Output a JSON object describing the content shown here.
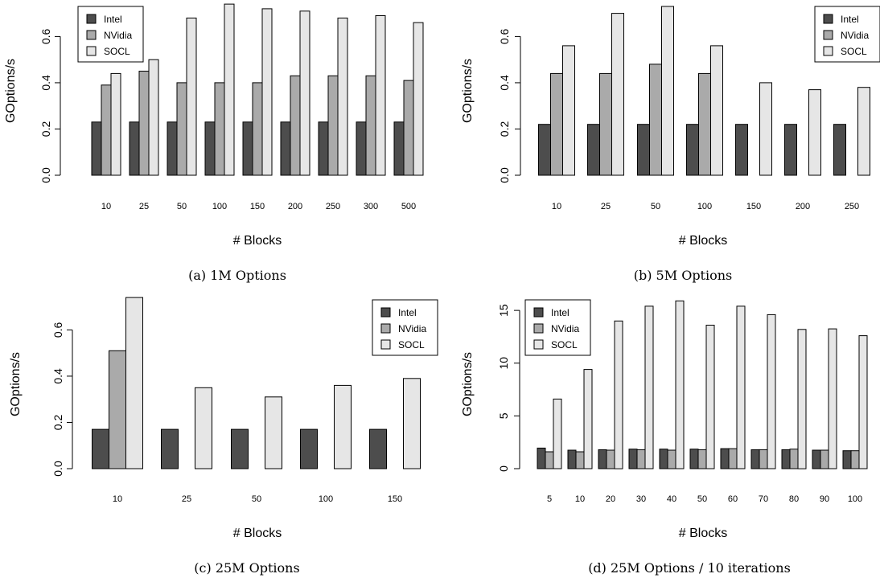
{
  "colors": {
    "Intel": "#4d4d4d",
    "NVidia": "#aaaaaa",
    "SOCL": "#e6e6e6",
    "stroke": "#000000"
  },
  "chart_data": [
    {
      "type": "bar",
      "caption": "(a) 1M Options",
      "xlabel": "# Blocks",
      "ylabel": "GOptions/s",
      "categories": [
        "10",
        "25",
        "50",
        "100",
        "150",
        "200",
        "250",
        "300",
        "500"
      ],
      "ylim": [
        0,
        0.73
      ],
      "yticks": [
        "0.0",
        "0.2",
        "0.4",
        "0.6"
      ],
      "legend_position": "top-left",
      "series": [
        {
          "name": "Intel",
          "values": [
            0.23,
            0.23,
            0.23,
            0.23,
            0.23,
            0.23,
            0.23,
            0.23,
            0.23
          ]
        },
        {
          "name": "NVidia",
          "values": [
            0.39,
            0.45,
            0.4,
            0.4,
            0.4,
            0.43,
            0.43,
            0.43,
            0.41
          ]
        },
        {
          "name": "SOCL",
          "values": [
            0.44,
            0.5,
            0.68,
            0.74,
            0.72,
            0.71,
            0.68,
            0.69,
            0.66
          ]
        }
      ]
    },
    {
      "type": "bar",
      "caption": "(b) 5M Options",
      "xlabel": "# Blocks",
      "ylabel": "GOptions/s",
      "categories": [
        "10",
        "25",
        "50",
        "100",
        "150",
        "200",
        "250"
      ],
      "ylim": [
        0,
        0.73
      ],
      "yticks": [
        "0.0",
        "0.2",
        "0.4",
        "0.6"
      ],
      "legend_position": "top-right",
      "series": [
        {
          "name": "Intel",
          "values": [
            0.22,
            0.22,
            0.22,
            0.22,
            0.22,
            0.22,
            0.22
          ]
        },
        {
          "name": "NVidia",
          "values": [
            0.44,
            0.44,
            0.48,
            0.44,
            0,
            0,
            0
          ]
        },
        {
          "name": "SOCL",
          "values": [
            0.56,
            0.7,
            0.73,
            0.56,
            0.4,
            0.37,
            0.38
          ]
        }
      ]
    },
    {
      "type": "bar",
      "caption": "(c) 25M Options",
      "xlabel": "# Blocks",
      "ylabel": "GOptions/s",
      "categories": [
        "10",
        "25",
        "50",
        "100",
        "150"
      ],
      "ylim": [
        0,
        0.73
      ],
      "yticks": [
        "0.0",
        "0.2",
        "0.4",
        "0.6"
      ],
      "legend_position": "top-right",
      "series": [
        {
          "name": "Intel",
          "values": [
            0.17,
            0.17,
            0.17,
            0.17,
            0.17
          ]
        },
        {
          "name": "NVidia",
          "values": [
            0.51,
            0,
            0,
            0,
            0
          ]
        },
        {
          "name": "SOCL",
          "values": [
            0.74,
            0.35,
            0.31,
            0.36,
            0.39
          ]
        }
      ]
    },
    {
      "type": "bar",
      "caption": "(d) 25M Options / 10 iterations",
      "xlabel": "# Blocks",
      "ylabel": "GOptions/s",
      "categories": [
        "5",
        "10",
        "20",
        "30",
        "40",
        "50",
        "60",
        "70",
        "80",
        "90",
        "100"
      ],
      "ylim": [
        0,
        16
      ],
      "yticks": [
        "0",
        "5",
        "10",
        "15"
      ],
      "legend_position": "top-left",
      "series": [
        {
          "name": "Intel",
          "values": [
            1.95,
            1.75,
            1.8,
            1.85,
            1.85,
            1.85,
            1.9,
            1.8,
            1.8,
            1.75,
            1.7
          ]
        },
        {
          "name": "NVidia",
          "values": [
            1.6,
            1.6,
            1.75,
            1.8,
            1.75,
            1.8,
            1.9,
            1.8,
            1.85,
            1.75,
            1.7
          ]
        },
        {
          "name": "SOCL",
          "values": [
            6.6,
            9.4,
            14.0,
            15.4,
            15.9,
            13.6,
            15.4,
            14.6,
            13.2,
            13.25,
            12.6
          ]
        }
      ]
    }
  ]
}
